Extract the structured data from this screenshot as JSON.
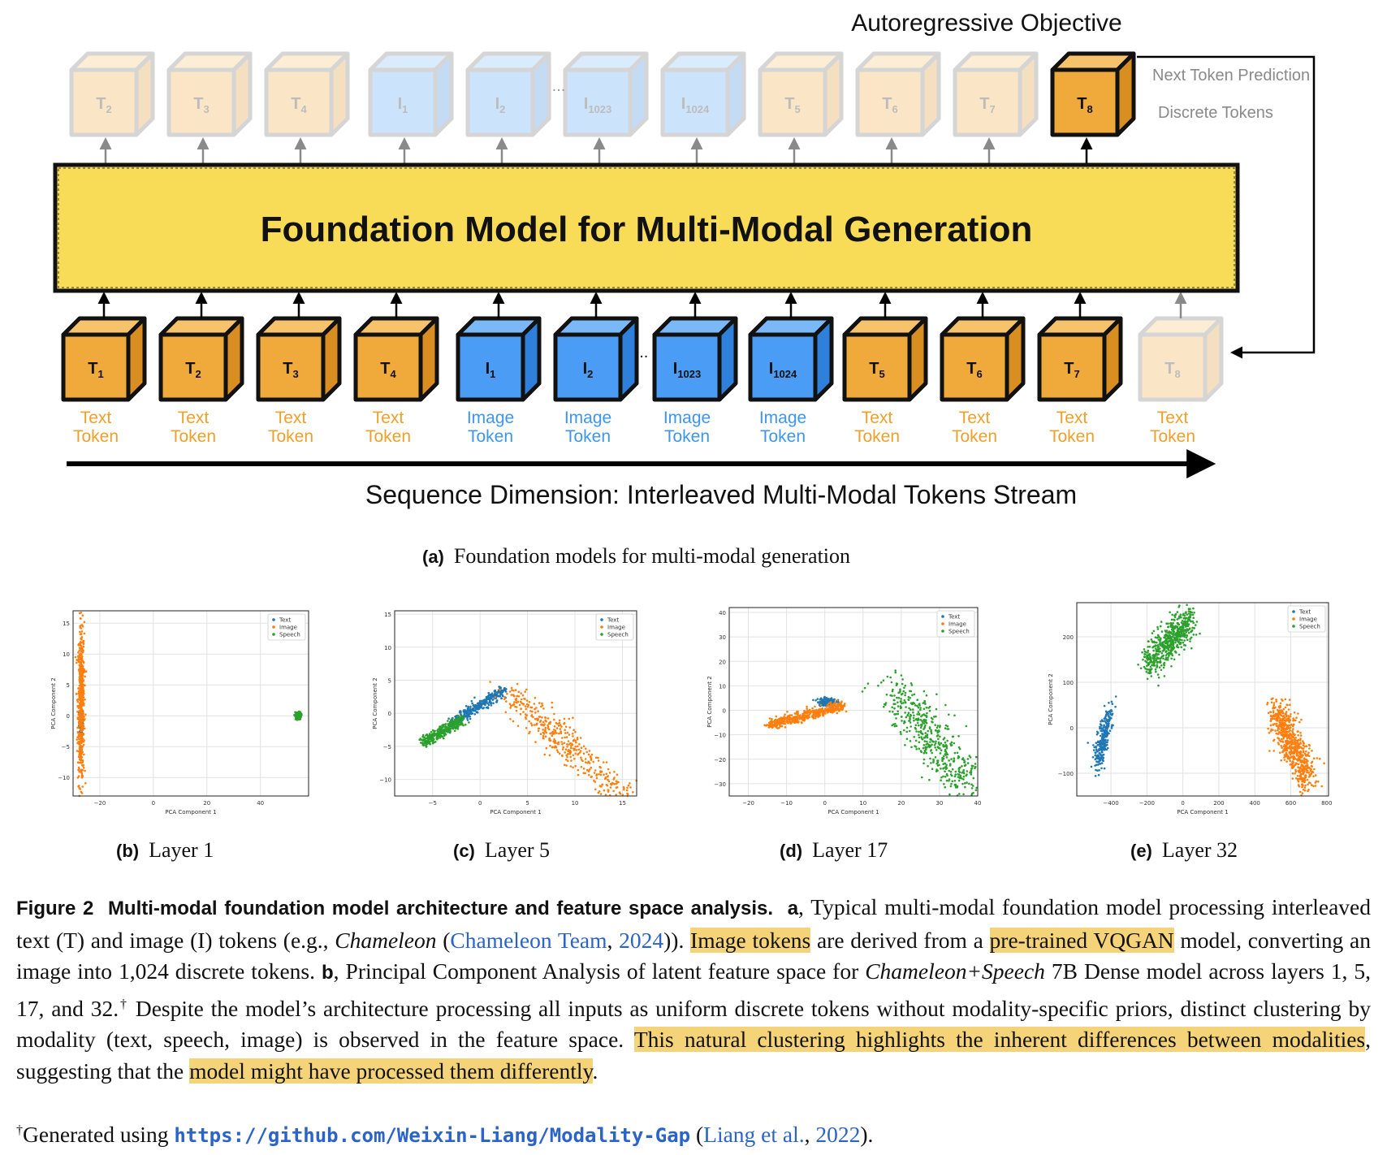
{
  "diagram": {
    "objective_title": "Autoregressive Objective",
    "next_token_label": "Next Token Prediction",
    "discrete_tokens_label": "Discrete Tokens",
    "model_label": "Foundation Model for Multi-Modal Generation",
    "sequence_label": "Sequence Dimension: Interleaved Multi-Modal Tokens Stream",
    "ellipsis": "...",
    "colors": {
      "text": "#f0a93b",
      "image": "#4a9cf5",
      "model": "#f8dc58",
      "text_label": "#f0a02a",
      "image_label": "#3e95f0"
    },
    "output_tokens": [
      {
        "base": "T",
        "sub": "2",
        "kind": "text",
        "faded": true
      },
      {
        "base": "T",
        "sub": "3",
        "kind": "text",
        "faded": true
      },
      {
        "base": "T",
        "sub": "4",
        "kind": "text",
        "faded": true
      },
      {
        "base": "I",
        "sub": "1",
        "kind": "image",
        "faded": true
      },
      {
        "base": "I",
        "sub": "2",
        "kind": "image",
        "faded": true
      },
      {
        "base": "I",
        "sub": "1023",
        "kind": "image",
        "faded": true
      },
      {
        "base": "I",
        "sub": "1024",
        "kind": "image",
        "faded": true
      },
      {
        "base": "T",
        "sub": "5",
        "kind": "text",
        "faded": true
      },
      {
        "base": "T",
        "sub": "6",
        "kind": "text",
        "faded": true
      },
      {
        "base": "T",
        "sub": "7",
        "kind": "text",
        "faded": true
      },
      {
        "base": "T",
        "sub": "8",
        "kind": "text",
        "faded": false
      }
    ],
    "input_tokens": [
      {
        "base": "T",
        "sub": "1",
        "kind": "text",
        "faded": false,
        "label1": "Text",
        "label2": "Token"
      },
      {
        "base": "T",
        "sub": "2",
        "kind": "text",
        "faded": false,
        "label1": "Text",
        "label2": "Token"
      },
      {
        "base": "T",
        "sub": "3",
        "kind": "text",
        "faded": false,
        "label1": "Text",
        "label2": "Token"
      },
      {
        "base": "T",
        "sub": "4",
        "kind": "text",
        "faded": false,
        "label1": "Text",
        "label2": "Token"
      },
      {
        "base": "I",
        "sub": "1",
        "kind": "image",
        "faded": false,
        "label1": "Image",
        "label2": "Token"
      },
      {
        "base": "I",
        "sub": "2",
        "kind": "image",
        "faded": false,
        "label1": "Image",
        "label2": "Token"
      },
      {
        "base": "I",
        "sub": "1023",
        "kind": "image",
        "faded": false,
        "label1": "Image",
        "label2": "Token"
      },
      {
        "base": "I",
        "sub": "1024",
        "kind": "image",
        "faded": false,
        "label1": "Image",
        "label2": "Token"
      },
      {
        "base": "T",
        "sub": "5",
        "kind": "text",
        "faded": false,
        "label1": "Text",
        "label2": "Token"
      },
      {
        "base": "T",
        "sub": "6",
        "kind": "text",
        "faded": false,
        "label1": "Text",
        "label2": "Token"
      },
      {
        "base": "T",
        "sub": "7",
        "kind": "text",
        "faded": false,
        "label1": "Text",
        "label2": "Token"
      },
      {
        "base": "T",
        "sub": "8",
        "kind": "text",
        "faded": true,
        "label1": "Text",
        "label2": "Token"
      }
    ]
  },
  "subcaptions": {
    "a": {
      "label": "(a)",
      "text": "Foundation models for multi-modal generation"
    },
    "b": {
      "label": "(b)",
      "text": "Layer 1"
    },
    "c": {
      "label": "(c)",
      "text": "Layer 5"
    },
    "d": {
      "label": "(d)",
      "text": "Layer 17"
    },
    "e": {
      "label": "(e)",
      "text": "Layer 32"
    }
  },
  "chart_data": [
    {
      "type": "scatter",
      "title": "",
      "xlabel": "PCA Component 1",
      "ylabel": "PCA Component 2",
      "xticks": [
        "−20",
        "0",
        "20",
        "40"
      ],
      "yticks": [
        "−10",
        "−5",
        "0",
        "5",
        "10",
        "15"
      ],
      "xlim": [
        -30,
        58
      ],
      "ylim": [
        -13,
        17
      ],
      "grid": true,
      "legend": "top-right",
      "series": [
        {
          "name": "Text",
          "color": "#1f77b4",
          "cx": -27,
          "cy": -1,
          "sx": 0.4,
          "sy": 1.2,
          "n": 120
        },
        {
          "name": "Image",
          "color": "#ff7f0e",
          "cx": -27,
          "cy": 2,
          "sx": 0.6,
          "sy": 6.5,
          "n": 600
        },
        {
          "name": "Speech",
          "color": "#2ca02c",
          "cx": 54,
          "cy": 0,
          "sx": 0.6,
          "sy": 0.3,
          "n": 120
        }
      ]
    },
    {
      "type": "scatter",
      "title": "",
      "xlabel": "PCA Component 1",
      "ylabel": "PCA Component 2",
      "xticks": [
        "−5",
        "0",
        "5",
        "10",
        "15"
      ],
      "yticks": [
        "−10",
        "−5",
        "0",
        "5",
        "10",
        "15"
      ],
      "xlim": [
        -9,
        16.5
      ],
      "ylim": [
        -12.5,
        15.5
      ],
      "grid": true,
      "legend": "top-right",
      "series": [
        {
          "name": "Text",
          "color": "#1f77b4",
          "cx": -3,
          "cy": -1.5,
          "dx": 5.5,
          "dy": 5,
          "sx": 0.3,
          "sy": 0.4,
          "n": 350
        },
        {
          "name": "Image",
          "color": "#ff7f0e",
          "cx": 3,
          "cy": 3,
          "dx": 19,
          "dy": -24,
          "sx": 0.8,
          "sy": 1.2,
          "n": 600
        },
        {
          "name": "Speech",
          "color": "#2ca02c",
          "cx": -6,
          "cy": -4.5,
          "dx": 4,
          "dy": 3.5,
          "sx": 0.3,
          "sy": 0.4,
          "n": 350
        }
      ]
    },
    {
      "type": "scatter",
      "title": "",
      "xlabel": "PCA Component 1",
      "ylabel": "PCA Component 2",
      "xticks": [
        "−20",
        "−10",
        "0",
        "10",
        "20",
        "30",
        "40"
      ],
      "yticks": [
        "−30",
        "−20",
        "−10",
        "0",
        "10",
        "20",
        "30",
        "40"
      ],
      "xlim": [
        -25,
        40
      ],
      "ylim": [
        -35,
        42
      ],
      "grid": true,
      "legend": "top-right",
      "series": [
        {
          "name": "Text",
          "color": "#1f77b4",
          "cx": 0.5,
          "cy": 3.5,
          "sx": 1.2,
          "sy": 0.8,
          "n": 150
        },
        {
          "name": "Image",
          "color": "#ff7f0e",
          "cx": -15,
          "cy": -6,
          "dx": 20,
          "dy": 8,
          "sx": 0.6,
          "sy": 1.0,
          "n": 450
        },
        {
          "name": "Speech",
          "color": "#2ca02c",
          "cx": 18,
          "cy": 8,
          "dx": 20,
          "dy": -40,
          "sx": 3,
          "sy": 4,
          "n": 500
        }
      ]
    },
    {
      "type": "scatter",
      "title": "",
      "xlabel": "PCA Component 1",
      "ylabel": "PCA Component 2",
      "xticks": [
        "−400",
        "−200",
        "0",
        "200",
        "400",
        "600",
        "800"
      ],
      "yticks": [
        "−100",
        "0",
        "100",
        "200"
      ],
      "xlim": [
        -590,
        810
      ],
      "ylim": [
        -150,
        275
      ],
      "grid": true,
      "legend": "top-right",
      "series": [
        {
          "name": "Text",
          "color": "#1f77b4",
          "cx": -480,
          "cy": -80,
          "dx": 80,
          "dy": 120,
          "sx": 15,
          "sy": 15,
          "n": 250
        },
        {
          "name": "Image",
          "color": "#ff7f0e",
          "cx": 520,
          "cy": 40,
          "dx": 180,
          "dy": -160,
          "sx": 30,
          "sy": 20,
          "n": 650
        },
        {
          "name": "Speech",
          "color": "#2ca02c",
          "cx": -200,
          "cy": 140,
          "dx": 250,
          "dy": 100,
          "sx": 25,
          "sy": 20,
          "n": 550
        }
      ]
    }
  ],
  "caption": {
    "fig_label": "Figure 2",
    "fig_title": "Multi-modal foundation model architecture and feature space analysis.",
    "a_label": "a",
    "t1": ", Typical multi-modal foundation model processing interleaved text (T) and image (I) tokens (e.g., ",
    "chameleon": "Chameleon",
    "t2": " (",
    "cite1": "Chameleon Team",
    "t3": ", ",
    "cite1_year": "2024",
    "t4": ")). ",
    "hl1": "Image tokens",
    "t5": " are derived from a ",
    "hl2": "pre-trained VQGAN",
    "t6": " model, converting an image into 1,024 discrete tokens. ",
    "b_label": "b",
    "t7": ", Principal Component Analysis of latent feature space for ",
    "model_name": "Chameleon+Speech",
    "t8": " 7B Dense model across layers 1, 5, 17, and 32.",
    "dagger": "†",
    "t9": " Despite the model’s architecture processing all inputs as uniform discrete tokens without modality-specific priors, distinct clustering by modality (text, speech, image) is observed in the feature space. ",
    "hl3": "This natural clustering highlights the inherent differences between modalities",
    "t10": ", suggesting that the ",
    "hl4": "model might have processed them differently",
    "t11": "."
  },
  "footnote": {
    "dagger": "†",
    "text": "Generated using ",
    "url": "https://github.com/Weixin-Liang/Modality-Gap",
    "t2": " (",
    "cite": "Liang et al.",
    "t3": ", ",
    "year": "2022",
    "t4": ")."
  }
}
